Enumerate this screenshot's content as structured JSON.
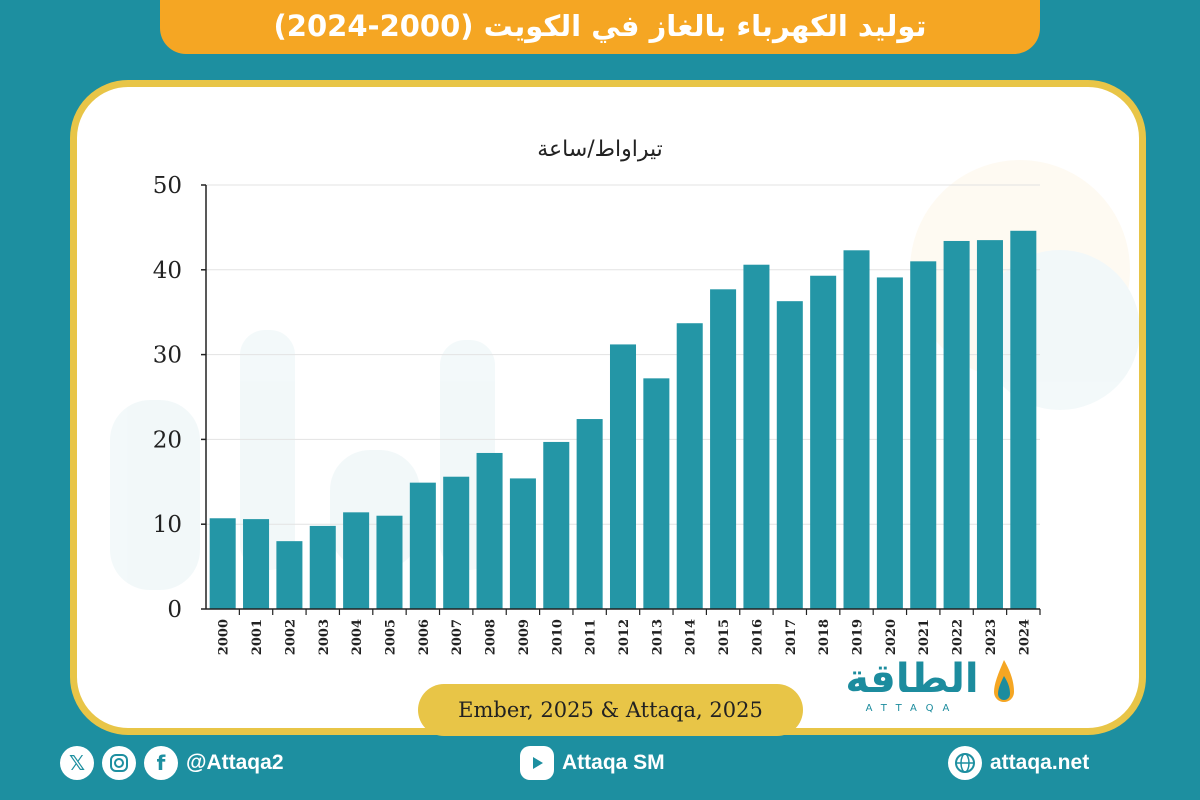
{
  "header": {
    "title": "توليد الكهرباء بالغاز في الكويت (2000-2024)"
  },
  "brand": {
    "name_ar": "الطاقة",
    "name_en": "ATTAQA"
  },
  "source": "Ember, 2025 & Attaqa, 2025",
  "footer": {
    "handle": "@Attaqa2",
    "youtube": "Attaqa SM",
    "website": "attaqa.net"
  },
  "colors": {
    "bar": "#2496a6",
    "accent": "#f5a623",
    "frame": "#e8c547",
    "background": "#1d8fa0"
  },
  "chart_data": {
    "type": "bar",
    "unit_label": "تيراواط/ساعة",
    "categories": [
      "2000",
      "2001",
      "2002",
      "2003",
      "2004",
      "2005",
      "2006",
      "2007",
      "2008",
      "2009",
      "2010",
      "2011",
      "2012",
      "2013",
      "2014",
      "2015",
      "2016",
      "2017",
      "2018",
      "2019",
      "2020",
      "2021",
      "2022",
      "2023",
      "2024"
    ],
    "values": [
      10.7,
      10.6,
      8.0,
      9.8,
      11.4,
      11.0,
      14.9,
      15.6,
      18.4,
      15.4,
      19.7,
      22.4,
      31.2,
      27.2,
      33.7,
      37.7,
      40.6,
      36.3,
      39.3,
      42.3,
      39.1,
      41.0,
      43.4,
      43.5,
      44.6
    ],
    "yticks": [
      0,
      10,
      20,
      30,
      40,
      50
    ],
    "ylim": [
      0,
      50
    ],
    "grid": true
  }
}
